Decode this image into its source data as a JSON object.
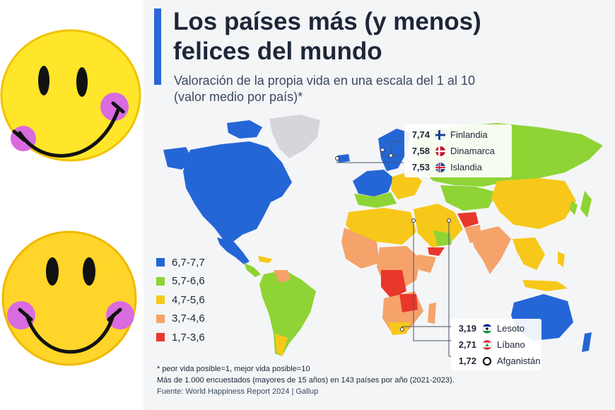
{
  "title": {
    "line1": "Los países más (y menos)",
    "line2": "felices del mundo"
  },
  "subtitle": {
    "line1": "Valoración de la propia vida en una escala del 1 al 10",
    "line2": "(valor medio por país)*"
  },
  "legend": [
    {
      "range": "6,7-7,7",
      "color": "#2466d6"
    },
    {
      "range": "5,7-6,6",
      "color": "#8ed434"
    },
    {
      "range": "4,7-5,6",
      "color": "#f7c81a"
    },
    {
      "range": "3,7-4,6",
      "color": "#f5a36a"
    },
    {
      "range": "1,7-3,6",
      "color": "#e8382c"
    }
  ],
  "colors": {
    "no_data": "#d4d6da",
    "accent": "#2b67d8",
    "ocean": "#f4f5f7"
  },
  "happiest": [
    {
      "value": "7,74",
      "country": "Finlandia",
      "flag": "finland-flag"
    },
    {
      "value": "7,58",
      "country": "Dinamarca",
      "flag": "denmark-flag"
    },
    {
      "value": "7,53",
      "country": "Islandia",
      "flag": "iceland-flag"
    }
  ],
  "unhappiest": [
    {
      "value": "3,19",
      "country": "Lesoto",
      "flag": "lesotho-flag"
    },
    {
      "value": "2,71",
      "country": "Líbano",
      "flag": "lebanon-flag"
    },
    {
      "value": "1,72",
      "country": "Afganistán",
      "flag": "afghanistan-flag"
    }
  ],
  "footer": {
    "note1": "* peor vida posible=1, mejor vida posible=10",
    "note2": "Más de 1.000 encuestados (mayores de 15 años) en 143 países por año (2021-2023).",
    "source": "Fuente: World Happiness Report 2024 | Gallup"
  },
  "decorations": [
    "smiley-face-icon",
    "smiley-face-icon"
  ]
}
